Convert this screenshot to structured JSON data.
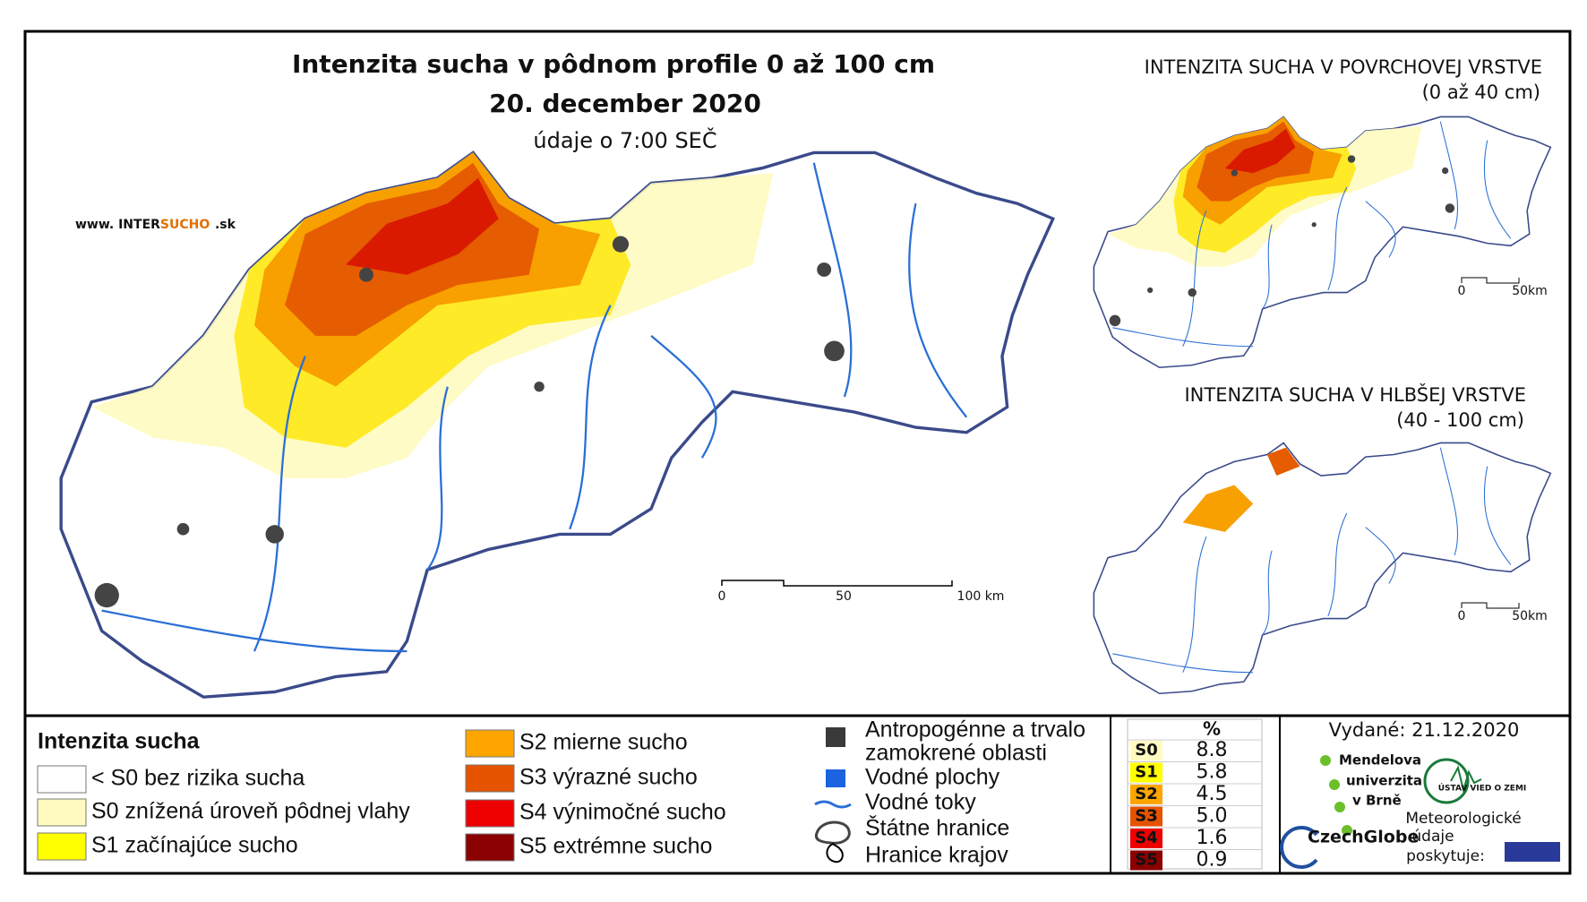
{
  "title": "Intenzita sucha v pôdnom profile 0 až 100 cm",
  "date": "20. december 2020",
  "subtitle": "údaje o 7:00 SEČ",
  "website": {
    "prefix": "www. INTER",
    "highlight": "SUCHO",
    "suffix": ".sk"
  },
  "main_scale": [
    "0",
    "50",
    "100 km"
  ],
  "inset_surface": {
    "title": "INTENZITA SUCHA V POVRCHOVEJ VRSTVE",
    "subtitle": "(0 až 40 cm)",
    "scale": [
      "0",
      "50km"
    ]
  },
  "inset_deep": {
    "title": "INTENZITA SUCHA V HLBŠEJ VRSTVE",
    "subtitle": "(40 - 100 cm)",
    "scale": [
      "0",
      "50km"
    ]
  },
  "legend": {
    "title": "Intenzita sucha",
    "items": [
      "< S0 bez rizika sucha",
      "S0 znížená úroveň pôdnej vlahy",
      "S1 začínajúce sucho",
      "S2 mierne sucho",
      "S3 výrazné sucho",
      "S4 výnimočné sucho",
      "S5 extrémne sucho"
    ]
  },
  "map_legend": [
    "Antropogénne a trvalo",
    "zamokrené oblasti",
    "Vodné plochy",
    "Vodné toky",
    "Štátne hranice",
    "Hranice krajov"
  ],
  "table": {
    "header": "%",
    "rows": [
      [
        "S0",
        "8.8"
      ],
      [
        "S1",
        "5.8"
      ],
      [
        "S2",
        "4.5"
      ],
      [
        "S3",
        "5.0"
      ],
      [
        "S4",
        "1.6"
      ],
      [
        "S5",
        "0.9"
      ]
    ]
  },
  "issued": "Vydané: 21.12.2020",
  "logos": {
    "mendel": [
      "Mendelova",
      "univerzita",
      "v Brně"
    ],
    "czechglobe": "CzechGlobe",
    "uvz": "ÚSTAV VIED O ZEMI",
    "meteo": [
      "Meteorologické",
      "údaje",
      "poskytuje:"
    ]
  }
}
